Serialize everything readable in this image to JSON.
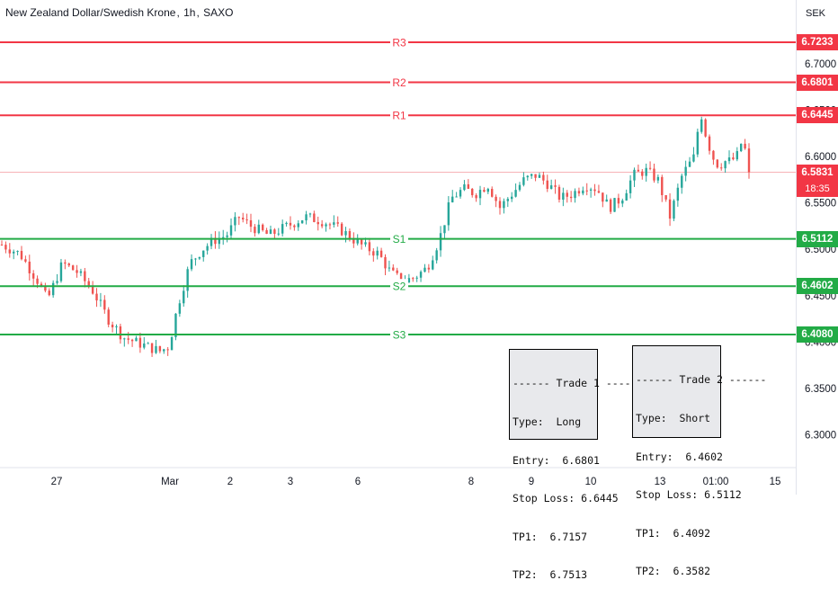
{
  "header": {
    "symbol_name": "New Zealand Dollar/Swedish Krone",
    "interval": "1h",
    "exchange": "SAXO",
    "currency": "SEK"
  },
  "chart_data": {
    "type": "candlestick",
    "y_axis": {
      "ticks": [
        "6.7000",
        "6.6500",
        "6.6000",
        "6.5500",
        "6.5000",
        "6.4500",
        "6.4000",
        "6.3500",
        "6.3000"
      ],
      "range": [
        6.26,
        6.765
      ]
    },
    "x_axis": {
      "ticks": [
        "27",
        "Mar",
        "2",
        "3",
        "6",
        "8",
        "9",
        "10",
        "13",
        "01:00",
        "15"
      ]
    },
    "levels": [
      {
        "label": "R3",
        "value": "6.7233",
        "color": "#f23645"
      },
      {
        "label": "R2",
        "value": "6.6801",
        "color": "#f23645"
      },
      {
        "label": "R1",
        "value": "6.6445",
        "color": "#f23645"
      },
      {
        "label": "S1",
        "value": "6.5112",
        "color": "#22ab46"
      },
      {
        "label": "S2",
        "value": "6.4602",
        "color": "#22ab46"
      },
      {
        "label": "S3",
        "value": "6.4080",
        "color": "#22ab46"
      }
    ],
    "current_price": {
      "value": "6.5831",
      "countdown": "18:35",
      "color": "#f23645"
    },
    "up_color": "#26a69a",
    "down_color": "#ef5350",
    "candle_count": 190,
    "price_path": [
      [
        0,
        6.505
      ],
      [
        6,
        6.495
      ],
      [
        12,
        6.465
      ],
      [
        15,
        6.445
      ],
      [
        20,
        6.485
      ],
      [
        25,
        6.475
      ],
      [
        30,
        6.455
      ],
      [
        35,
        6.425
      ],
      [
        40,
        6.405
      ],
      [
        44,
        6.4
      ],
      [
        48,
        6.395
      ],
      [
        52,
        6.39
      ],
      [
        55,
        6.395
      ],
      [
        58,
        6.44
      ],
      [
        62,
        6.485
      ],
      [
        66,
        6.5
      ],
      [
        70,
        6.51
      ],
      [
        74,
        6.515
      ],
      [
        78,
        6.535
      ],
      [
        82,
        6.525
      ],
      [
        88,
        6.515
      ],
      [
        94,
        6.525
      ],
      [
        100,
        6.535
      ],
      [
        106,
        6.53
      ],
      [
        112,
        6.52
      ],
      [
        118,
        6.505
      ],
      [
        124,
        6.495
      ],
      [
        128,
        6.475
      ],
      [
        132,
        6.465
      ],
      [
        136,
        6.47
      ],
      [
        140,
        6.48
      ],
      [
        144,
        6.51
      ],
      [
        148,
        6.555
      ],
      [
        152,
        6.565
      ],
      [
        156,
        6.56
      ],
      [
        160,
        6.57
      ],
      [
        164,
        6.545
      ],
      [
        168,
        6.56
      ],
      [
        172,
        6.575
      ],
      [
        176,
        6.58
      ],
      [
        180,
        6.57
      ],
      [
        184,
        6.555
      ],
      [
        188,
        6.56
      ],
      [
        192,
        6.57
      ],
      [
        196,
        6.565
      ],
      [
        200,
        6.545
      ],
      [
        204,
        6.555
      ],
      [
        208,
        6.58
      ],
      [
        212,
        6.585
      ],
      [
        216,
        6.575
      ],
      [
        220,
        6.535
      ],
      [
        224,
        6.58
      ],
      [
        228,
        6.6
      ],
      [
        230,
        6.65
      ],
      [
        232,
        6.62
      ],
      [
        234,
        6.6
      ],
      [
        236,
        6.59
      ],
      [
        238,
        6.595
      ],
      [
        240,
        6.595
      ],
      [
        242,
        6.6
      ],
      [
        244,
        6.62
      ],
      [
        246,
        6.583
      ]
    ],
    "trade_boxes": [
      {
        "title": "------ Trade 1 ------",
        "type": "Type:  Long",
        "entry": "Entry:  6.6801",
        "stop_loss": "Stop Loss: 6.6445",
        "tp1": "TP1:  6.7157",
        "tp2": "TP2:  6.7513"
      },
      {
        "title": "------ Trade 2 ------",
        "type": "Type:  Short",
        "entry": "Entry:  6.4602",
        "stop_loss": "Stop Loss: 6.5112",
        "tp1": "TP1:  6.4092",
        "tp2": "TP2:  6.3582"
      }
    ]
  }
}
